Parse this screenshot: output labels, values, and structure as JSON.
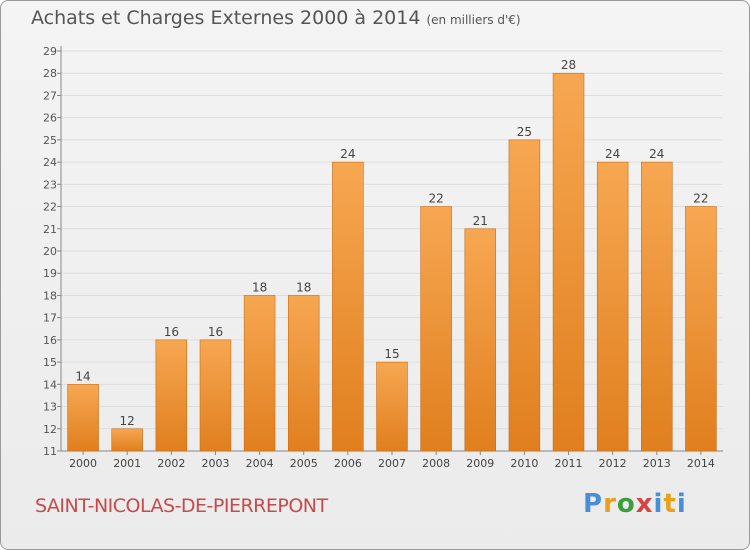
{
  "header": {
    "title": "Achats et Charges Externes 2000 à 2014",
    "subtitle": "(en milliers d'€)"
  },
  "footer": {
    "commune": "SAINT-NICOLAS-DE-PIERREPONT",
    "logo_text": "Proxiti"
  },
  "colors": {
    "bar_light": "#f7a752",
    "bar_dark": "#e07f1e",
    "title": "#555555",
    "commune": "#c84a4a",
    "grid": "#dddddd"
  },
  "chart_data": {
    "type": "bar",
    "categories": [
      "2000",
      "2001",
      "2002",
      "2003",
      "2004",
      "2005",
      "2006",
      "2007",
      "2008",
      "2009",
      "2010",
      "2011",
      "2012",
      "2013",
      "2014"
    ],
    "values": [
      14,
      12,
      16,
      16,
      18,
      18,
      24,
      15,
      22,
      21,
      25,
      28,
      24,
      24,
      22
    ],
    "yticks": [
      11,
      12,
      13,
      14,
      15,
      16,
      17,
      18,
      19,
      20,
      21,
      22,
      23,
      24,
      25,
      26,
      27,
      28,
      29
    ],
    "ylim": [
      11,
      29
    ],
    "title": "Achats et Charges Externes 2000 à 2014",
    "subtitle": "(en milliers d'€)",
    "grid": true,
    "legend": "none"
  }
}
